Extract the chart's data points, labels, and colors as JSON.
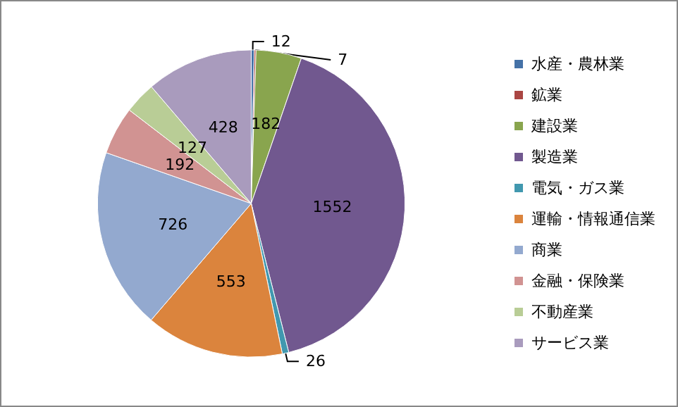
{
  "chart_data": {
    "type": "pie",
    "categories": [
      "水産・農林業",
      "鉱業",
      "建設業",
      "製造業",
      "電気・ガス業",
      "運輸・情報通信業",
      "商業",
      "金融・保険業",
      "不動産業",
      "サービス業"
    ],
    "values": [
      12,
      7,
      182,
      1552,
      26,
      553,
      726,
      192,
      127,
      428
    ],
    "colors": [
      "#4572a7",
      "#aa4643",
      "#89a54e",
      "#71588f",
      "#4198af",
      "#db843d",
      "#93a9cf",
      "#d19392",
      "#b9cd96",
      "#a99bbd"
    ],
    "data_labels": true,
    "legend": "right"
  }
}
